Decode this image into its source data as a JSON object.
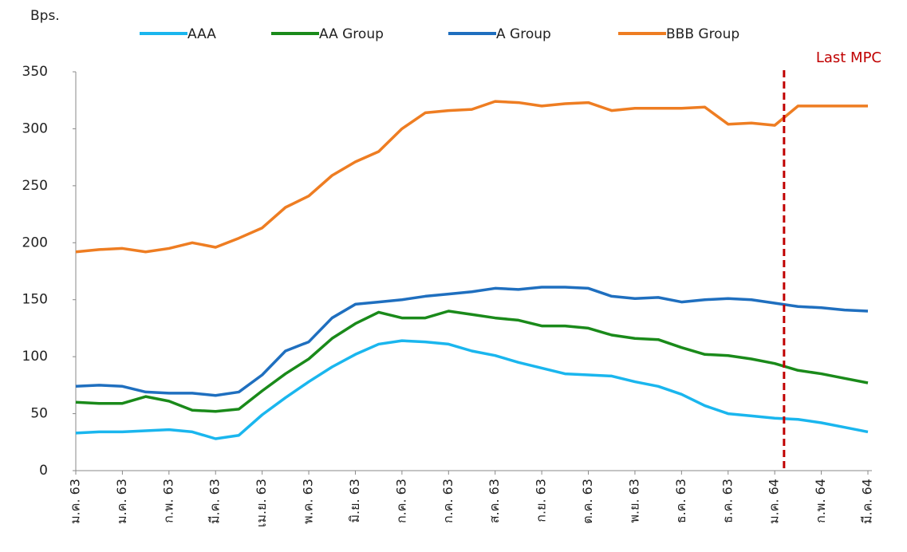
{
  "chart_data": {
    "type": "line",
    "y_axis_label": "Bps.",
    "categories": [
      "ม.ค. 63",
      null,
      "ม.ค. 63",
      null,
      "ก.พ. 63",
      null,
      "มี.ค. 63",
      null,
      "เม.ย. 63",
      null,
      "พ.ค. 63",
      null,
      "มิ.ย. 63",
      null,
      "ก.ค. 63",
      null,
      "ก.ค. 63",
      null,
      "ส.ค. 63",
      null,
      "ก.ย. 63",
      null,
      "ต.ค. 63",
      null,
      "พ.ย. 63",
      null,
      "ธ.ค. 63",
      null,
      "ธ.ค. 63",
      null,
      "ม.ค. 64",
      null,
      "ก.พ. 64",
      null,
      "มี.ค. 64"
    ],
    "series": [
      {
        "name": "AAA",
        "color": "#1ab6ee",
        "values": [
          33,
          34,
          34,
          35,
          36,
          34,
          28,
          31,
          49,
          64,
          78,
          91,
          102,
          111,
          114,
          113,
          111,
          105,
          101,
          95,
          90,
          85,
          84,
          83,
          78,
          74,
          67,
          57,
          50,
          48,
          46,
          45,
          42,
          38,
          34
        ]
      },
      {
        "name": "AA Group",
        "color": "#1a8a1a",
        "values": [
          60,
          59,
          59,
          65,
          61,
          53,
          52,
          54,
          70,
          85,
          98,
          116,
          129,
          139,
          134,
          134,
          140,
          137,
          134,
          132,
          127,
          127,
          125,
          119,
          116,
          115,
          108,
          102,
          101,
          98,
          94,
          88,
          85,
          81,
          77
        ]
      },
      {
        "name": "A Group",
        "color": "#1f6fbf",
        "values": [
          74,
          75,
          74,
          69,
          68,
          68,
          66,
          69,
          84,
          105,
          113,
          134,
          146,
          148,
          150,
          153,
          155,
          157,
          160,
          159,
          161,
          161,
          160,
          153,
          151,
          152,
          148,
          150,
          151,
          150,
          147,
          144,
          143,
          141,
          140
        ]
      },
      {
        "name": "BBB Group",
        "color": "#ee7d22",
        "values": [
          192,
          194,
          195,
          192,
          195,
          200,
          196,
          204,
          213,
          231,
          241,
          259,
          271,
          280,
          300,
          314,
          316,
          317,
          324,
          323,
          320,
          322,
          323,
          316,
          318,
          318,
          318,
          319,
          304,
          305,
          303,
          320,
          320,
          320,
          320
        ]
      }
    ],
    "ylim": [
      0,
      350
    ],
    "yticks": [
      0,
      50,
      100,
      150,
      200,
      250,
      300,
      350
    ],
    "vline": {
      "label": "Last MPC",
      "color": "#c00000",
      "at": 30.4
    }
  }
}
